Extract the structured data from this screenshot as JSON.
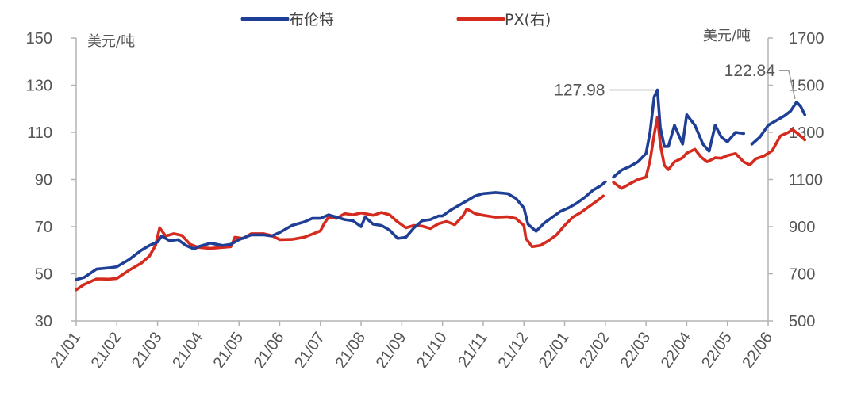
{
  "chart_data": {
    "type": "line",
    "title": "",
    "xlabel": "",
    "left_axis": {
      "unit": "美元/吨",
      "ylim": [
        30,
        150
      ],
      "ticks": [
        "30",
        "50",
        "70",
        "90",
        "110",
        "130",
        "150"
      ]
    },
    "right_axis": {
      "unit": "美元/吨",
      "ylim": [
        500,
        1700
      ],
      "ticks": [
        "500",
        "700",
        "900",
        "1100",
        "1300",
        "1500",
        "1700"
      ]
    },
    "categories": [
      "21/01",
      "21/02",
      "21/03",
      "21/04",
      "21/05",
      "21/06",
      "21/07",
      "21/08",
      "21/09",
      "21/10",
      "21/11",
      "21/12",
      "22/01",
      "22/02",
      "22/03",
      "22/04",
      "22/05",
      "22/06"
    ],
    "legend": {
      "position": "top-center"
    },
    "grid": false,
    "colors": {
      "brent": "#1f3f96",
      "px": "#d42b1e"
    },
    "series": [
      {
        "name": "布伦特",
        "axis": "left",
        "color": "#1f3f96",
        "segments": [
          [
            [
              0.0,
              47.5
            ],
            [
              0.2,
              48.5
            ],
            [
              0.5,
              52
            ],
            [
              0.8,
              52.5
            ],
            [
              1.0,
              53
            ],
            [
              1.3,
              56
            ],
            [
              1.6,
              60
            ],
            [
              1.8,
              62
            ],
            [
              2.0,
              63.5
            ],
            [
              2.1,
              66
            ],
            [
              2.3,
              64
            ],
            [
              2.5,
              64.5
            ],
            [
              2.7,
              62
            ],
            [
              2.9,
              60.5
            ],
            [
              3.0,
              61.5
            ],
            [
              3.3,
              63
            ],
            [
              3.6,
              62
            ],
            [
              3.8,
              62.5
            ],
            [
              4.0,
              64.5
            ],
            [
              4.3,
              66.5
            ],
            [
              4.6,
              66.5
            ],
            [
              4.8,
              66
            ],
            [
              5.0,
              67.5
            ],
            [
              5.3,
              70.5
            ],
            [
              5.6,
              72
            ],
            [
              5.8,
              73.5
            ],
            [
              6.0,
              73.5
            ],
            [
              6.2,
              75
            ],
            [
              6.4,
              74
            ],
            [
              6.6,
              73
            ],
            [
              6.8,
              72.5
            ],
            [
              7.0,
              70
            ],
            [
              7.1,
              74
            ],
            [
              7.3,
              71
            ],
            [
              7.5,
              70.5
            ],
            [
              7.7,
              68.5
            ],
            [
              7.9,
              65
            ],
            [
              8.1,
              65.5
            ],
            [
              8.3,
              69.5
            ],
            [
              8.5,
              72.5
            ],
            [
              8.7,
              73
            ],
            [
              8.9,
              74.5
            ],
            [
              9.0,
              74.5
            ],
            [
              9.2,
              77
            ],
            [
              9.4,
              79
            ],
            [
              9.6,
              81
            ],
            [
              9.8,
              83
            ],
            [
              10.0,
              84
            ],
            [
              10.3,
              84.5
            ],
            [
              10.6,
              84
            ],
            [
              10.8,
              82
            ],
            [
              11.0,
              78
            ],
            [
              11.1,
              71
            ],
            [
              11.3,
              68
            ],
            [
              11.5,
              71.5
            ],
            [
              11.7,
              74
            ],
            [
              11.9,
              76.5
            ],
            [
              12.1,
              78
            ],
            [
              12.3,
              80
            ],
            [
              12.5,
              82.5
            ],
            [
              12.7,
              85.5
            ],
            [
              12.9,
              87.5
            ],
            [
              13.0,
              89
            ]
          ],
          [
            [
              13.2,
              91
            ],
            [
              13.4,
              94
            ],
            [
              13.6,
              95.5
            ],
            [
              13.8,
              97.5
            ],
            [
              14.0,
              101
            ],
            [
              14.1,
              110
            ],
            [
              14.2,
              125
            ],
            [
              14.28,
              127.98
            ],
            [
              14.35,
              112
            ],
            [
              14.45,
              104
            ],
            [
              14.55,
              104
            ],
            [
              14.7,
              113
            ],
            [
              14.9,
              105
            ],
            [
              15.0,
              117.5
            ],
            [
              15.2,
              113
            ],
            [
              15.4,
              105
            ],
            [
              15.55,
              102
            ],
            [
              15.7,
              113
            ],
            [
              15.85,
              108
            ],
            [
              16.0,
              106
            ],
            [
              16.2,
              110
            ],
            [
              16.4,
              109.5
            ]
          ],
          [
            [
              16.6,
              105
            ],
            [
              16.8,
              108
            ],
            [
              17.0,
              113
            ],
            [
              17.2,
              115
            ],
            [
              17.4,
              117
            ],
            [
              17.55,
              119
            ],
            [
              17.7,
              122.84
            ],
            [
              17.8,
              121
            ],
            [
              17.9,
              117.5
            ]
          ]
        ]
      },
      {
        "name": "PX(右)",
        "axis": "right",
        "color": "#d42b1e",
        "segments": [
          [
            [
              0.0,
              632
            ],
            [
              0.2,
              655
            ],
            [
              0.5,
              678
            ],
            [
              0.8,
              677
            ],
            [
              1.0,
              680
            ],
            [
              1.3,
              715
            ],
            [
              1.6,
              745
            ],
            [
              1.8,
              775
            ],
            [
              1.95,
              820
            ],
            [
              2.05,
              895
            ],
            [
              2.2,
              860
            ],
            [
              2.4,
              870
            ],
            [
              2.6,
              862
            ],
            [
              2.8,
              825
            ],
            [
              3.0,
              812
            ],
            [
              3.3,
              808
            ],
            [
              3.6,
              812
            ],
            [
              3.8,
              815
            ],
            [
              3.9,
              855
            ],
            [
              4.1,
              850
            ],
            [
              4.3,
              870
            ],
            [
              4.6,
              870
            ],
            [
              4.8,
              862
            ],
            [
              5.0,
              845
            ],
            [
              5.3,
              846
            ],
            [
              5.6,
              855
            ],
            [
              5.8,
              868
            ],
            [
              6.0,
              882
            ],
            [
              6.1,
              915
            ],
            [
              6.2,
              940
            ],
            [
              6.4,
              935
            ],
            [
              6.6,
              955
            ],
            [
              6.8,
              950
            ],
            [
              7.0,
              958
            ],
            [
              7.3,
              948
            ],
            [
              7.5,
              960
            ],
            [
              7.7,
              950
            ],
            [
              7.9,
              920
            ],
            [
              8.1,
              895
            ],
            [
              8.3,
              905
            ],
            [
              8.5,
              902
            ],
            [
              8.7,
              892
            ],
            [
              8.9,
              912
            ],
            [
              9.1,
              922
            ],
            [
              9.3,
              908
            ],
            [
              9.5,
              945
            ],
            [
              9.6,
              975
            ],
            [
              9.8,
              955
            ],
            [
              10.0,
              948
            ],
            [
              10.3,
              940
            ],
            [
              10.6,
              942
            ],
            [
              10.8,
              935
            ],
            [
              11.0,
              905
            ],
            [
              11.05,
              850
            ],
            [
              11.2,
              815
            ],
            [
              11.4,
              820
            ],
            [
              11.6,
              840
            ],
            [
              11.8,
              865
            ],
            [
              12.0,
              905
            ],
            [
              12.2,
              940
            ],
            [
              12.4,
              960
            ],
            [
              12.6,
              985
            ],
            [
              12.8,
              1010
            ],
            [
              12.95,
              1030
            ]
          ],
          [
            [
              13.2,
              1088
            ],
            [
              13.4,
              1062
            ],
            [
              13.6,
              1082
            ],
            [
              13.8,
              1100
            ],
            [
              14.0,
              1110
            ],
            [
              14.1,
              1180
            ],
            [
              14.2,
              1290
            ],
            [
              14.28,
              1365
            ],
            [
              14.35,
              1250
            ],
            [
              14.45,
              1160
            ],
            [
              14.55,
              1142
            ],
            [
              14.7,
              1175
            ],
            [
              14.9,
              1192
            ],
            [
              15.0,
              1212
            ],
            [
              15.2,
              1228
            ],
            [
              15.35,
              1195
            ],
            [
              15.5,
              1175
            ],
            [
              15.7,
              1192
            ],
            [
              15.85,
              1190
            ],
            [
              16.0,
              1202
            ],
            [
              16.2,
              1210
            ],
            [
              16.4,
              1175
            ],
            [
              16.55,
              1162
            ],
            [
              16.7,
              1188
            ],
            [
              16.9,
              1200
            ],
            [
              17.1,
              1222
            ],
            [
              17.3,
              1285
            ],
            [
              17.5,
              1300
            ],
            [
              17.6,
              1312
            ],
            [
              17.75,
              1292
            ],
            [
              17.9,
              1268
            ]
          ]
        ]
      }
    ],
    "annotations": [
      {
        "text": "127.98",
        "series": "布伦特",
        "x": 14.28,
        "y": 127.98
      },
      {
        "text": "122.84",
        "series": "布伦特",
        "x": 17.7,
        "y": 122.84
      }
    ]
  }
}
